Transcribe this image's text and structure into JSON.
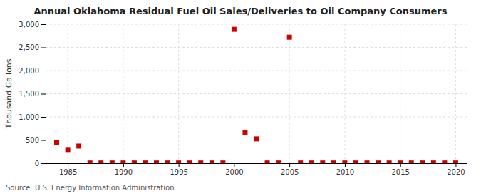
{
  "chart_data": {
    "type": "scatter",
    "title": "Annual Oklahoma Residual Fuel Oil Sales/Deliveries to Oil Company Consumers",
    "ylabel": "Thousand Gallons",
    "source": "Source: U.S. Energy Information Administration",
    "x": [
      1984,
      1985,
      1986,
      1987,
      1988,
      1989,
      1990,
      1991,
      1992,
      1993,
      1994,
      1995,
      1996,
      1997,
      1998,
      1999,
      2000,
      2001,
      2002,
      2003,
      2004,
      2005,
      2006,
      2007,
      2008,
      2009,
      2010,
      2011,
      2012,
      2013,
      2014,
      2015,
      2016,
      2017,
      2018,
      2019,
      2020
    ],
    "values": [
      450,
      295,
      370,
      5,
      5,
      5,
      5,
      5,
      5,
      5,
      5,
      5,
      5,
      5,
      5,
      5,
      2890,
      670,
      525,
      5,
      5,
      2720,
      5,
      5,
      5,
      5,
      5,
      5,
      5,
      5,
      5,
      5,
      5,
      5,
      5,
      5,
      5
    ],
    "color": "#cc0000",
    "marker": "square",
    "xlim": [
      1983,
      2021
    ],
    "ylim": [
      0,
      3000
    ],
    "xticks": [
      1985,
      1990,
      1995,
      2000,
      2005,
      2010,
      2015,
      2020
    ],
    "yticks": [
      0,
      500,
      {
        "value": 1000,
        "label": "1,000"
      },
      {
        "value": 1500,
        "label": "1,500"
      },
      {
        "value": 2000,
        "label": "2,000"
      },
      {
        "value": 2500,
        "label": "2,500"
      },
      {
        "value": 3000,
        "label": "3,000"
      }
    ],
    "grid": true
  }
}
